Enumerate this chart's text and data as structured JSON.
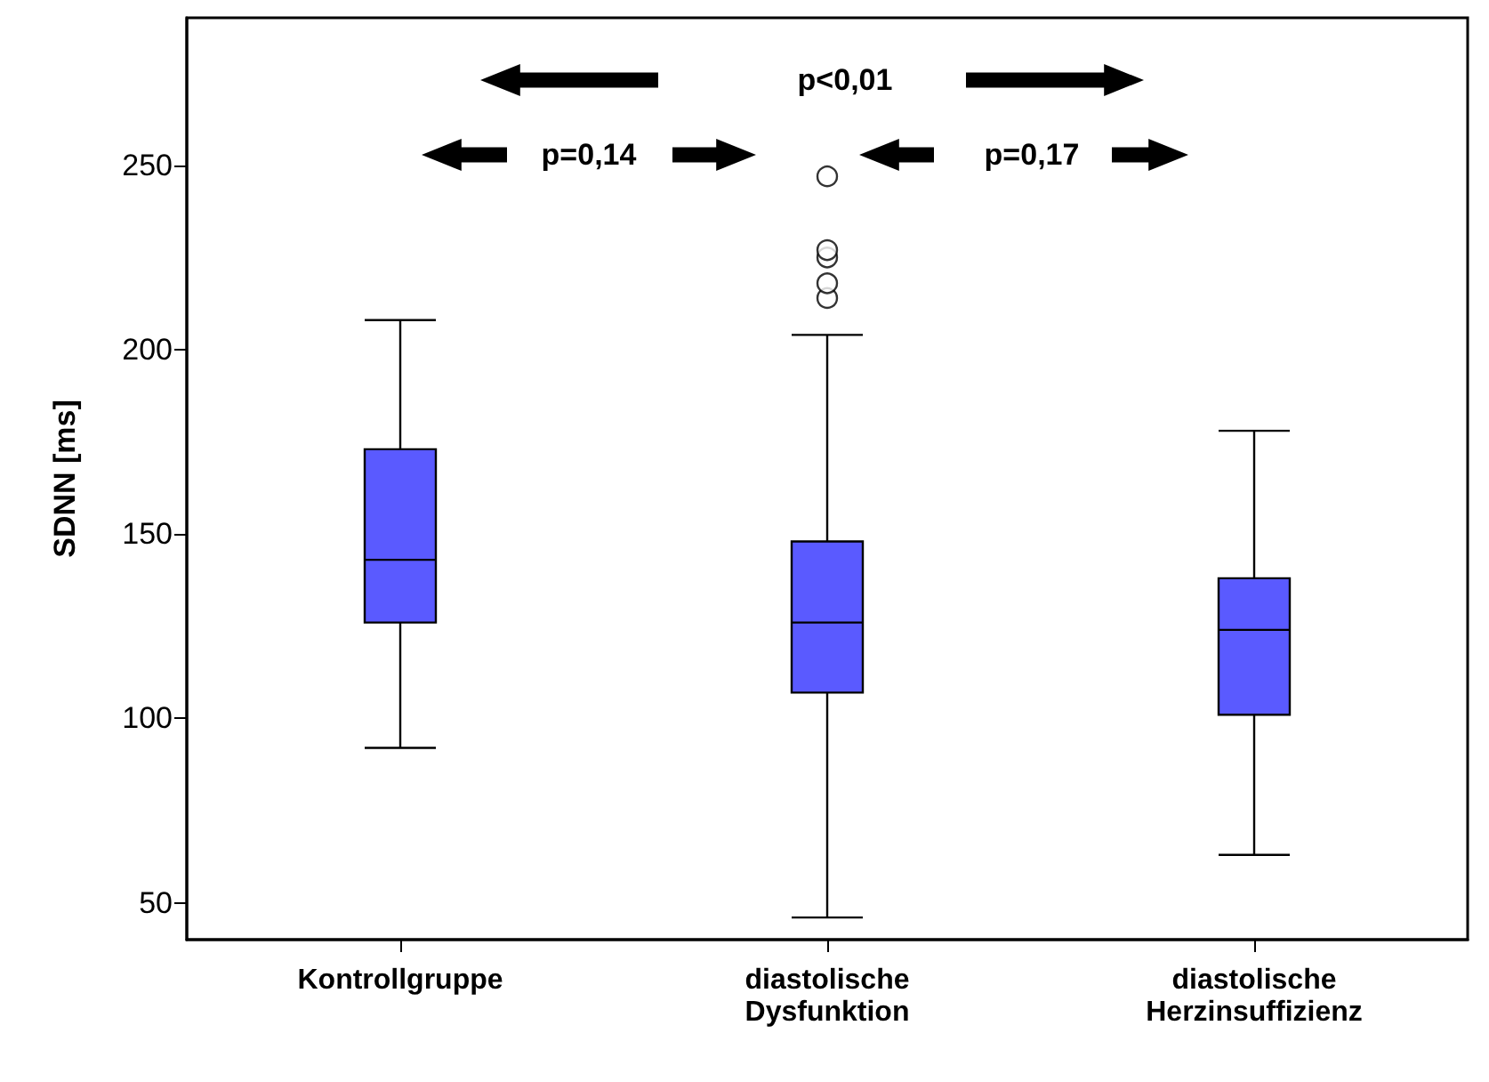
{
  "chart_data": {
    "type": "box",
    "ylabel": "SDNN [ms]",
    "categories": [
      "Kontrollgruppe",
      "diastolische Dysfunktion",
      "diastolische Herzinsuffizienz"
    ],
    "series": [
      {
        "color": "#5a5aff",
        "boxes": [
          {
            "low": 92,
            "q1": 126,
            "median": 143,
            "q3": 173,
            "high": 208
          },
          {
            "low": 46,
            "q1": 107,
            "median": 126,
            "q3": 148,
            "high": 204,
            "outliers": [
              214,
              218,
              225,
              227,
              247
            ]
          },
          {
            "low": 63,
            "q1": 101,
            "median": 124,
            "q3": 138,
            "high": 178
          }
        ]
      }
    ],
    "ylim": [
      40,
      290
    ],
    "yticks": [
      50,
      100,
      150,
      200,
      250
    ],
    "grid": false,
    "annotations": [
      "p<0,01",
      "p=0,14",
      "p=0,17"
    ]
  }
}
